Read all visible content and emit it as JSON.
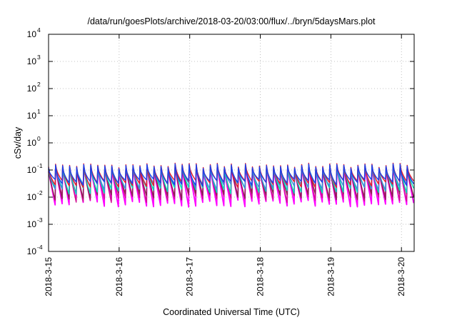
{
  "chart_data": {
    "type": "line",
    "title": "/data/run/goesPlots/archive/2018-03-20/03:00/flux/../bryn/5daysMars.plot",
    "xlabel": "Coordinated Universal Time (UTC)",
    "ylabel": "cSv/day",
    "yscale": "log",
    "ylim": [
      0.0001,
      10000
    ],
    "xlim_days": [
      0,
      5.18
    ],
    "x_ticks": [
      {
        "label": "2018-3-15",
        "day": 0
      },
      {
        "label": "2018-3-16",
        "day": 1
      },
      {
        "label": "2018-3-17",
        "day": 2
      },
      {
        "label": "2018-3-18",
        "day": 3
      },
      {
        "label": "2018-3-19",
        "day": 4
      },
      {
        "label": "2018-3-20",
        "day": 5
      }
    ],
    "y_ticks": [
      {
        "base": "10",
        "exp": "-4",
        "value": 0.0001
      },
      {
        "base": "10",
        "exp": "-3",
        "value": 0.001
      },
      {
        "base": "10",
        "exp": "-2",
        "value": 0.01
      },
      {
        "base": "10",
        "exp": "-1",
        "value": 0.1
      },
      {
        "base": "10",
        "exp": "0",
        "value": 1
      },
      {
        "base": "10",
        "exp": "1",
        "value": 10
      },
      {
        "base": "10",
        "exp": "2",
        "value": 100
      },
      {
        "base": "10",
        "exp": "3",
        "value": 1000
      },
      {
        "base": "10",
        "exp": "4",
        "value": 10000
      }
    ],
    "grid": true,
    "grid_style": "dotted",
    "pattern": "sawtooth dose-rate curves, about 10 peaks per day; each peak near 0.1-0.15 cSv/day, decaying between peaks",
    "series": [
      {
        "color": "#ff00ff",
        "peak": 0.1,
        "trough": 0.006,
        "decay_a": 1.0
      },
      {
        "color": "#d01090",
        "peak": 0.11,
        "trough": 0.009,
        "decay_a": 1.1
      },
      {
        "color": "#8a2252",
        "peak": 0.12,
        "trough": 0.011,
        "decay_a": 1.2
      },
      {
        "color": "#00ddbb",
        "peak": 0.125,
        "trough": 0.018,
        "decay_a": 1.4
      },
      {
        "color": "#3b8fd9",
        "peak": 0.13,
        "trough": 0.026,
        "decay_a": 1.6
      },
      {
        "color": "#e8182a",
        "peak": 0.15,
        "trough": 0.032,
        "decay_a": 1.8
      },
      {
        "color": "#1c40e8",
        "peak": 0.14,
        "trough": 0.036,
        "decay_a": 2.0
      }
    ]
  }
}
